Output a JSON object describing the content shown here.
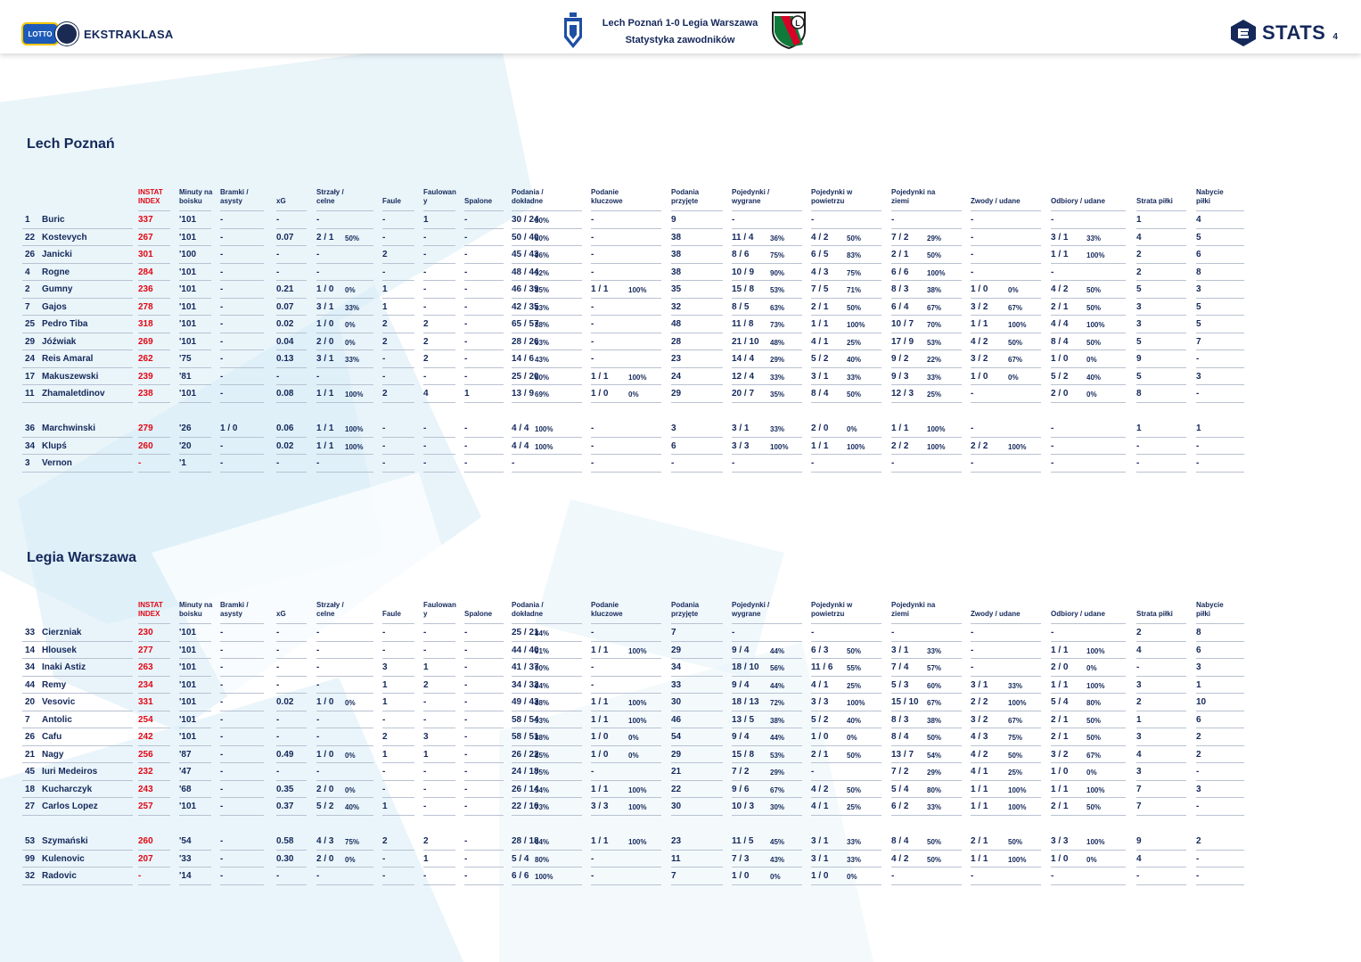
{
  "header": {
    "league_badge": "LOTTO",
    "league_name": "EKSTRAKLASA",
    "match_title": "Lech Poznań 1-0 Legia Warszawa",
    "match_subtitle": "Statystyka zawodników",
    "stats_brand": "STATS",
    "page_number": "4"
  },
  "columns": [
    {
      "l1": "",
      "l2": ""
    },
    {
      "l1": "",
      "l2": ""
    },
    {
      "l1": "INSTAT",
      "l2": "INDEX"
    },
    {
      "l1": "Minuty na",
      "l2": "boisku"
    },
    {
      "l1": "Bramki /",
      "l2": "asysty"
    },
    {
      "l1": "",
      "l2": "xG"
    },
    {
      "l1": "Strzały /",
      "l2": "celne"
    },
    {
      "l1": "",
      "l2": "Faule"
    },
    {
      "l1": "Faulowan",
      "l2": "y"
    },
    {
      "l1": "",
      "l2": "Spalone"
    },
    {
      "l1": "Podania /",
      "l2": "dokładne"
    },
    {
      "l1": "Podanie",
      "l2": "kluczowe"
    },
    {
      "l1": "Podania",
      "l2": "przyjęte"
    },
    {
      "l1": "Pojedynki /",
      "l2": "wygrane"
    },
    {
      "l1": "Pojedynki w",
      "l2": "powietrzu"
    },
    {
      "l1": "Pojedynki na",
      "l2": "ziemi"
    },
    {
      "l1": "",
      "l2": "Zwody / udane"
    },
    {
      "l1": "",
      "l2": "Odbiory / udane"
    },
    {
      "l1": "",
      "l2": "Strata piłki"
    },
    {
      "l1": "Nabycie",
      "l2": "piłki"
    }
  ],
  "teams": [
    {
      "name": "Lech Poznań",
      "rows": [
        [
          "1",
          "Buric",
          "337",
          "'101",
          "-",
          "-",
          "-",
          "",
          "-",
          "1",
          "-",
          "30 / 24",
          "80%",
          "-",
          "",
          "9",
          "-",
          "",
          "-",
          "",
          "-",
          "",
          "-",
          "",
          "-",
          "",
          "1",
          "4"
        ],
        [
          "22",
          "Kostevych",
          "267",
          "'101",
          "-",
          "0.07",
          "2 / 1",
          "50%",
          "-",
          "-",
          "-",
          "50 / 40",
          "80%",
          "-",
          "",
          "38",
          "11 / 4",
          "36%",
          "4 / 2",
          "50%",
          "7 / 2",
          "29%",
          "-",
          "",
          "3 / 1",
          "33%",
          "4",
          "5"
        ],
        [
          "26",
          "Janicki",
          "301",
          "'100",
          "-",
          "-",
          "-",
          "",
          "2",
          "-",
          "-",
          "45 / 43",
          "96%",
          "-",
          "",
          "38",
          "8 / 6",
          "75%",
          "6 / 5",
          "83%",
          "2 / 1",
          "50%",
          "-",
          "",
          "1 / 1",
          "100%",
          "2",
          "6"
        ],
        [
          "4",
          "Rogne",
          "284",
          "'101",
          "-",
          "-",
          "-",
          "",
          "-",
          "-",
          "-",
          "48 / 44",
          "92%",
          "-",
          "",
          "38",
          "10 / 9",
          "90%",
          "4 / 3",
          "75%",
          "6 / 6",
          "100%",
          "-",
          "",
          "-",
          "",
          "2",
          "8"
        ],
        [
          "2",
          "Gumny",
          "236",
          "'101",
          "-",
          "0.21",
          "1 / 0",
          "0%",
          "1",
          "-",
          "-",
          "46 / 39",
          "85%",
          "1 / 1",
          "100%",
          "35",
          "15 / 8",
          "53%",
          "7 / 5",
          "71%",
          "8 / 3",
          "38%",
          "1 / 0",
          "0%",
          "4 / 2",
          "50%",
          "5",
          "3"
        ],
        [
          "7",
          "Gajos",
          "278",
          "'101",
          "-",
          "0.07",
          "3 / 1",
          "33%",
          "1",
          "-",
          "-",
          "42 / 35",
          "83%",
          "-",
          "",
          "32",
          "8 / 5",
          "63%",
          "2 / 1",
          "50%",
          "6 / 4",
          "67%",
          "3 / 2",
          "67%",
          "2 / 1",
          "50%",
          "3",
          "5"
        ],
        [
          "25",
          "Pedro Tiba",
          "318",
          "'101",
          "-",
          "0.02",
          "1 / 0",
          "0%",
          "2",
          "2",
          "-",
          "65 / 57",
          "88%",
          "-",
          "",
          "48",
          "11 / 8",
          "73%",
          "1 / 1",
          "100%",
          "10 / 7",
          "70%",
          "1 / 1",
          "100%",
          "4 / 4",
          "100%",
          "3",
          "5"
        ],
        [
          "29",
          "Jóźwiak",
          "269",
          "'101",
          "-",
          "0.04",
          "2 / 0",
          "0%",
          "2",
          "2",
          "-",
          "28 / 26",
          "93%",
          "-",
          "",
          "28",
          "21 / 10",
          "48%",
          "4 / 1",
          "25%",
          "17 / 9",
          "53%",
          "4 / 2",
          "50%",
          "8 / 4",
          "50%",
          "5",
          "7"
        ],
        [
          "24",
          "Reis Amaral",
          "262",
          "'75",
          "-",
          "0.13",
          "3 / 1",
          "33%",
          "-",
          "2",
          "-",
          "14 / 6",
          "43%",
          "-",
          "",
          "23",
          "14 / 4",
          "29%",
          "5 / 2",
          "40%",
          "9 / 2",
          "22%",
          "3 / 2",
          "67%",
          "1 / 0",
          "0%",
          "9",
          "-"
        ],
        [
          "17",
          "Makuszewski",
          "239",
          "'81",
          "-",
          "-",
          "-",
          "",
          "-",
          "-",
          "-",
          "25 / 20",
          "80%",
          "1 / 1",
          "100%",
          "24",
          "12 / 4",
          "33%",
          "3 / 1",
          "33%",
          "9 / 3",
          "33%",
          "1 / 0",
          "0%",
          "5 / 2",
          "40%",
          "5",
          "3"
        ],
        [
          "11",
          "Zhamaletdinov",
          "238",
          "'101",
          "-",
          "0.08",
          "1 / 1",
          "100%",
          "2",
          "4",
          "1",
          "13 / 9",
          "69%",
          "1 / 0",
          "0%",
          "29",
          "20 / 7",
          "35%",
          "8 / 4",
          "50%",
          "12 / 3",
          "25%",
          "-",
          "",
          "2 / 0",
          "0%",
          "8",
          "-"
        ],
        [
          "36",
          "Marchwinski",
          "279",
          "'26",
          "1 / 0",
          "0.06",
          "1 / 1",
          "100%",
          "-",
          "-",
          "-",
          "4 / 4",
          "100%",
          "-",
          "",
          "3",
          "3 / 1",
          "33%",
          "2 / 0",
          "0%",
          "1 / 1",
          "100%",
          "-",
          "",
          "-",
          "",
          "1",
          "1"
        ],
        [
          "34",
          "Klupś",
          "260",
          "'20",
          "-",
          "0.02",
          "1 / 1",
          "100%",
          "-",
          "-",
          "-",
          "4 / 4",
          "100%",
          "-",
          "",
          "6",
          "3 / 3",
          "100%",
          "1 / 1",
          "100%",
          "2 / 2",
          "100%",
          "2 / 2",
          "100%",
          "-",
          "",
          "-",
          "-"
        ],
        [
          "3",
          "Vernon",
          "-",
          "'1",
          "-",
          "-",
          "-",
          "",
          "-",
          "-",
          "-",
          "-",
          "",
          "-",
          "",
          "-",
          "-",
          "",
          "-",
          "",
          "-",
          "",
          "-",
          "",
          "-",
          "",
          "-",
          "-"
        ]
      ]
    },
    {
      "name": "Legia Warszawa",
      "rows": [
        [
          "33",
          "Cierzniak",
          "230",
          "'101",
          "-",
          "-",
          "-",
          "",
          "-",
          "-",
          "-",
          "25 / 21",
          "84%",
          "-",
          "",
          "7",
          "-",
          "",
          "-",
          "",
          "-",
          "",
          "-",
          "",
          "-",
          "",
          "2",
          "8"
        ],
        [
          "14",
          "Hlousek",
          "277",
          "'101",
          "-",
          "-",
          "-",
          "",
          "-",
          "-",
          "-",
          "44 / 40",
          "91%",
          "1 / 1",
          "100%",
          "29",
          "9 / 4",
          "44%",
          "6 / 3",
          "50%",
          "3 / 1",
          "33%",
          "-",
          "",
          "1 / 1",
          "100%",
          "4",
          "6"
        ],
        [
          "34",
          "Inaki Astiz",
          "263",
          "'101",
          "-",
          "-",
          "-",
          "",
          "3",
          "1",
          "-",
          "41 / 37",
          "90%",
          "-",
          "",
          "34",
          "18 / 10",
          "56%",
          "11 / 6",
          "55%",
          "7 / 4",
          "57%",
          "-",
          "",
          "2 / 0",
          "0%",
          "-",
          "3"
        ],
        [
          "44",
          "Remy",
          "234",
          "'101",
          "-",
          "-",
          "-",
          "",
          "1",
          "2",
          "-",
          "34 / 32",
          "94%",
          "-",
          "",
          "33",
          "9 / 4",
          "44%",
          "4 / 1",
          "25%",
          "5 / 3",
          "60%",
          "3 / 1",
          "33%",
          "1 / 1",
          "100%",
          "3",
          "1"
        ],
        [
          "20",
          "Vesovic",
          "331",
          "'101",
          "-",
          "0.02",
          "1 / 0",
          "0%",
          "1",
          "-",
          "-",
          "49 / 43",
          "88%",
          "1 / 1",
          "100%",
          "30",
          "18 / 13",
          "72%",
          "3 / 3",
          "100%",
          "15 / 10",
          "67%",
          "2 / 2",
          "100%",
          "5 / 4",
          "80%",
          "2",
          "10"
        ],
        [
          "7",
          "Antolic",
          "254",
          "'101",
          "-",
          "-",
          "-",
          "",
          "-",
          "-",
          "-",
          "58 / 54",
          "93%",
          "1 / 1",
          "100%",
          "46",
          "13 / 5",
          "38%",
          "5 / 2",
          "40%",
          "8 / 3",
          "38%",
          "3 / 2",
          "67%",
          "2 / 1",
          "50%",
          "1",
          "6"
        ],
        [
          "26",
          "Cafu",
          "242",
          "'101",
          "-",
          "-",
          "-",
          "",
          "2",
          "3",
          "-",
          "58 / 51",
          "88%",
          "1 / 0",
          "0%",
          "54",
          "9 / 4",
          "44%",
          "1 / 0",
          "0%",
          "8 / 4",
          "50%",
          "4 / 3",
          "75%",
          "2 / 1",
          "50%",
          "3",
          "2"
        ],
        [
          "21",
          "Nagy",
          "256",
          "'87",
          "-",
          "0.49",
          "1 / 0",
          "0%",
          "1",
          "1",
          "-",
          "26 / 22",
          "85%",
          "1 / 0",
          "0%",
          "29",
          "15 / 8",
          "53%",
          "2 / 1",
          "50%",
          "13 / 7",
          "54%",
          "4 / 2",
          "50%",
          "3 / 2",
          "67%",
          "4",
          "2"
        ],
        [
          "45",
          "Iuri Medeiros",
          "232",
          "'47",
          "-",
          "-",
          "-",
          "",
          "-",
          "-",
          "-",
          "24 / 18",
          "75%",
          "-",
          "",
          "21",
          "7 / 2",
          "29%",
          "-",
          "",
          "7 / 2",
          "29%",
          "4 / 1",
          "25%",
          "1 / 0",
          "0%",
          "3",
          "-"
        ],
        [
          "18",
          "Kucharczyk",
          "243",
          "'68",
          "-",
          "0.35",
          "2 / 0",
          "0%",
          "-",
          "-",
          "-",
          "26 / 14",
          "54%",
          "1 / 1",
          "100%",
          "22",
          "9 / 6",
          "67%",
          "4 / 2",
          "50%",
          "5 / 4",
          "80%",
          "1 / 1",
          "100%",
          "1 / 1",
          "100%",
          "7",
          "3"
        ],
        [
          "27",
          "Carlos Lopez",
          "257",
          "'101",
          "-",
          "0.37",
          "5 / 2",
          "40%",
          "1",
          "-",
          "-",
          "22 / 16",
          "73%",
          "3 / 3",
          "100%",
          "30",
          "10 / 3",
          "30%",
          "4 / 1",
          "25%",
          "6 / 2",
          "33%",
          "1 / 1",
          "100%",
          "2 / 1",
          "50%",
          "7",
          "-"
        ],
        [
          "53",
          "Szymański",
          "260",
          "'54",
          "-",
          "0.58",
          "4 / 3",
          "75%",
          "2",
          "2",
          "-",
          "28 / 18",
          "64%",
          "1 / 1",
          "100%",
          "23",
          "11 / 5",
          "45%",
          "3 / 1",
          "33%",
          "8 / 4",
          "50%",
          "2 / 1",
          "50%",
          "3 / 3",
          "100%",
          "9",
          "2"
        ],
        [
          "99",
          "Kulenovic",
          "207",
          "'33",
          "-",
          "0.30",
          "2 / 0",
          "0%",
          "-",
          "1",
          "-",
          "5 / 4",
          "80%",
          "-",
          "",
          "11",
          "7 / 3",
          "43%",
          "3 / 1",
          "33%",
          "4 / 2",
          "50%",
          "1 / 1",
          "100%",
          "1 / 0",
          "0%",
          "4",
          "-"
        ],
        [
          "32",
          "Radovic",
          "-",
          "'14",
          "-",
          "-",
          "-",
          "",
          "-",
          "-",
          "-",
          "6 / 6",
          "100%",
          "-",
          "",
          "7",
          "1 / 0",
          "0%",
          "1 / 0",
          "0%",
          "-",
          "",
          "-",
          "",
          "-",
          "",
          "-",
          "-"
        ]
      ]
    }
  ],
  "colors": {
    "navy": "#14285a",
    "red": "#e30613",
    "rule": "#b9c2d2",
    "accent": "#cfe6f3"
  },
  "icons": {
    "crest_left": "lech-crest-icon",
    "crest_right": "legia-crest-icon",
    "stats_logo": "e-stats-logo-icon",
    "ball": "ekstraklasa-ball-icon"
  }
}
